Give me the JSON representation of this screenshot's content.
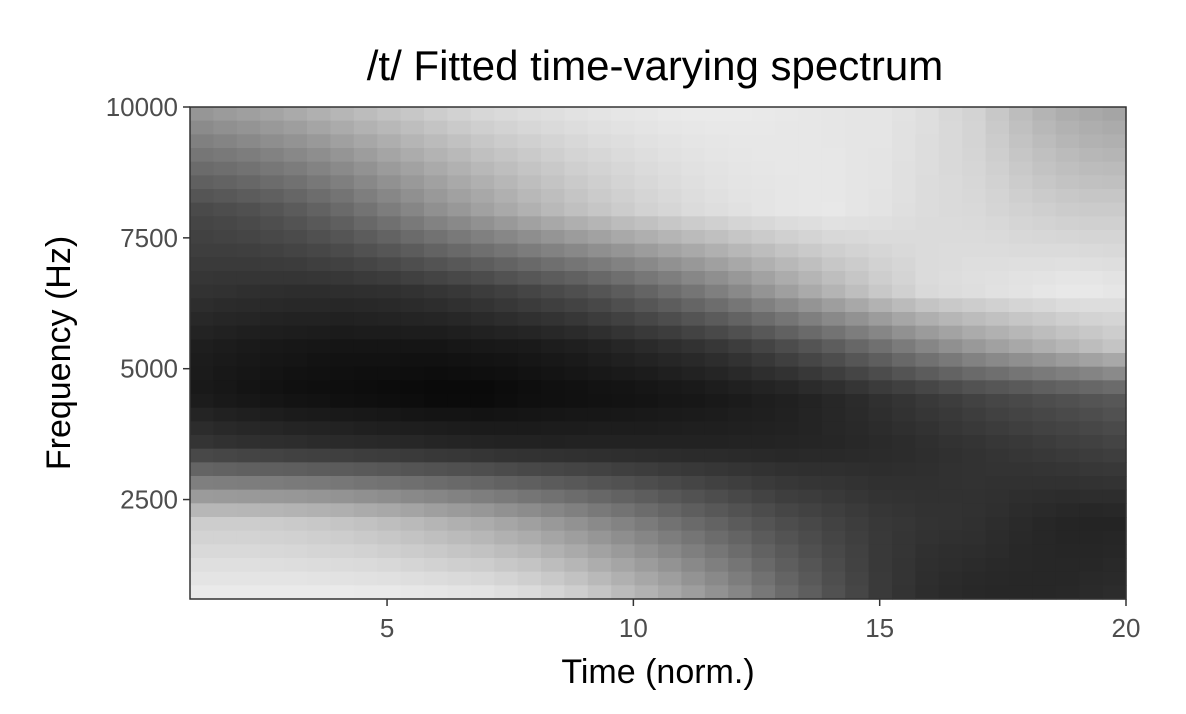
{
  "chart_data": {
    "type": "heatmap",
    "title": "/t/ Fitted time-varying spectrum",
    "xlabel": "Time (norm.)",
    "ylabel": "Frequency (Hz)",
    "xlim": [
      1,
      20
    ],
    "ylim": [
      600,
      10000
    ],
    "x_ticks": [
      5,
      10,
      15,
      20
    ],
    "y_ticks": [
      2500,
      5000,
      7500,
      10000
    ],
    "color_scale": {
      "low": "#000000",
      "high": "#ffffff"
    },
    "grid": false,
    "legend": "none",
    "time": [
      1,
      2,
      3,
      4,
      5,
      6,
      7,
      8,
      9,
      10,
      11,
      12,
      13,
      14,
      15,
      16,
      17,
      18,
      19,
      20
    ],
    "frequency_hz": [
      600,
      2100,
      3500,
      4500,
      5400,
      6500,
      8000,
      10000
    ],
    "z_rows": [
      [
        0.93,
        0.93,
        0.93,
        0.93,
        0.93,
        0.92,
        0.91,
        0.88,
        0.82,
        0.74,
        0.66,
        0.56,
        0.44,
        0.33,
        0.23,
        0.17,
        0.15,
        0.15,
        0.16,
        0.18
      ],
      [
        0.8,
        0.8,
        0.79,
        0.77,
        0.74,
        0.7,
        0.66,
        0.61,
        0.55,
        0.49,
        0.42,
        0.36,
        0.3,
        0.26,
        0.22,
        0.2,
        0.19,
        0.16,
        0.14,
        0.14
      ],
      [
        0.22,
        0.2,
        0.19,
        0.18,
        0.17,
        0.16,
        0.15,
        0.14,
        0.14,
        0.14,
        0.14,
        0.14,
        0.14,
        0.15,
        0.16,
        0.18,
        0.2,
        0.22,
        0.24,
        0.26
      ],
      [
        0.1,
        0.08,
        0.06,
        0.05,
        0.04,
        0.03,
        0.03,
        0.05,
        0.06,
        0.07,
        0.08,
        0.1,
        0.12,
        0.15,
        0.19,
        0.23,
        0.27,
        0.3,
        0.33,
        0.36
      ],
      [
        0.12,
        0.1,
        0.09,
        0.08,
        0.08,
        0.08,
        0.09,
        0.1,
        0.12,
        0.15,
        0.18,
        0.22,
        0.28,
        0.35,
        0.43,
        0.52,
        0.6,
        0.66,
        0.72,
        0.78
      ],
      [
        0.2,
        0.19,
        0.18,
        0.18,
        0.19,
        0.21,
        0.24,
        0.28,
        0.32,
        0.38,
        0.45,
        0.53,
        0.62,
        0.71,
        0.79,
        0.86,
        0.88,
        0.9,
        0.92,
        0.9
      ],
      [
        0.28,
        0.3,
        0.34,
        0.4,
        0.48,
        0.56,
        0.63,
        0.7,
        0.76,
        0.81,
        0.85,
        0.88,
        0.9,
        0.91,
        0.89,
        0.86,
        0.85,
        0.82,
        0.8,
        0.8
      ],
      [
        0.6,
        0.64,
        0.68,
        0.73,
        0.78,
        0.82,
        0.86,
        0.88,
        0.9,
        0.91,
        0.92,
        0.92,
        0.91,
        0.9,
        0.9,
        0.87,
        0.82,
        0.72,
        0.66,
        0.63
      ]
    ]
  }
}
